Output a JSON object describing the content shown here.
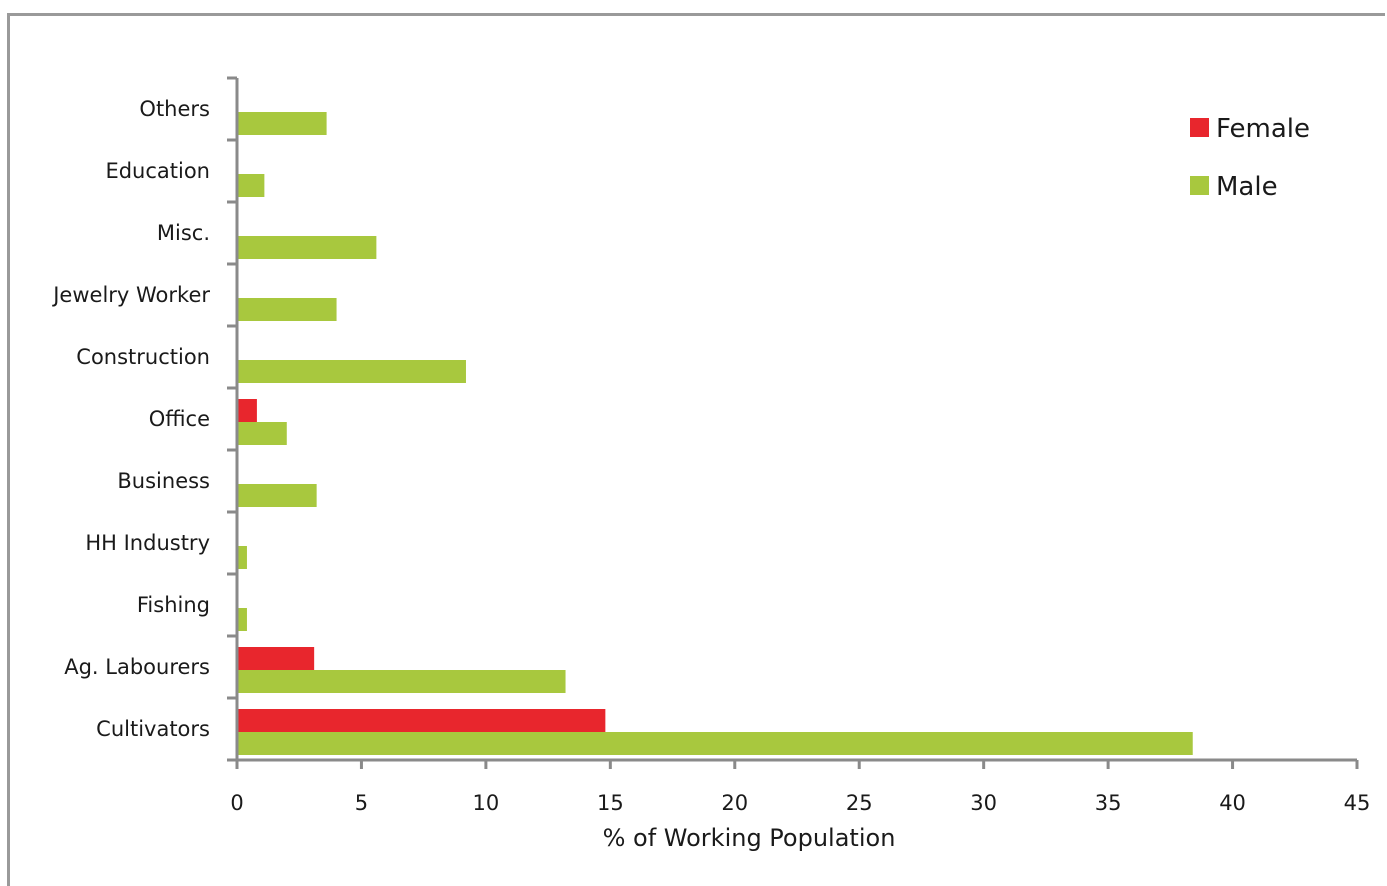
{
  "chart_data": {
    "type": "bar",
    "orientation": "horizontal",
    "categories": [
      "Cultivators",
      "Ag. Labourers",
      "Fishing",
      "HH Industry",
      "Business",
      "Office",
      "Construction",
      "Jewelry Worker",
      "Misc.",
      "Education",
      "Others"
    ],
    "series": [
      {
        "name": "Female",
        "color": "#e8262d",
        "values": [
          14.8,
          3.1,
          0,
          0,
          0,
          0.8,
          0,
          0,
          0,
          0,
          0
        ]
      },
      {
        "name": "Male",
        "color": "#a8c83e",
        "values": [
          38.4,
          13.2,
          0.4,
          0.4,
          3.2,
          2.0,
          9.2,
          4.0,
          5.6,
          1.1,
          3.6
        ]
      }
    ],
    "xlabel": "% of Working Population",
    "ylabel": "",
    "xlim": [
      0,
      45
    ],
    "xticks": [
      0,
      5,
      10,
      15,
      20,
      25,
      30,
      35,
      40,
      45
    ],
    "grid": false,
    "legend_position": "top-right"
  }
}
